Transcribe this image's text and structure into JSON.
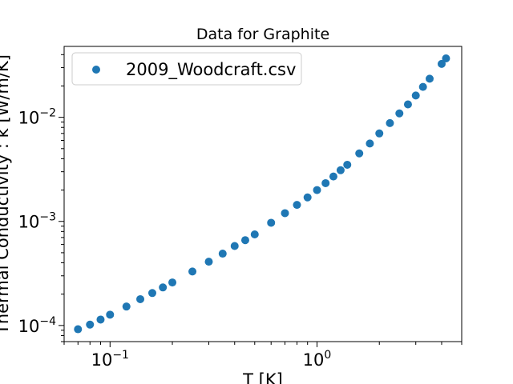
{
  "chart_data": {
    "type": "scatter",
    "title": "Data for Graphite",
    "xlabel": "T [K]",
    "ylabel": "Thermal Conductivity : k [W/m/K]",
    "xscale": "log",
    "yscale": "log",
    "xlim": [
      0.06,
      5.0
    ],
    "ylim": [
      7e-05,
      0.048
    ],
    "x_ticks": [
      {
        "value": 0.1,
        "base": "10",
        "exp": "−1"
      },
      {
        "value": 1.0,
        "base": "10",
        "exp": "0"
      }
    ],
    "y_ticks": [
      {
        "value": 0.0001,
        "base": "10",
        "exp": "−4"
      },
      {
        "value": 0.001,
        "base": "10",
        "exp": "−3"
      },
      {
        "value": 0.01,
        "base": "10",
        "exp": "−2"
      }
    ],
    "legend_position": "top-left",
    "grid": false,
    "series": [
      {
        "name": "2009_Woodcraft.csv",
        "color": "#1f77b4",
        "marker": "circle",
        "points": [
          {
            "x": 0.07,
            "y": 9.2e-05
          },
          {
            "x": 0.08,
            "y": 0.000102
          },
          {
            "x": 0.09,
            "y": 0.000114
          },
          {
            "x": 0.1,
            "y": 0.000127
          },
          {
            "x": 0.12,
            "y": 0.000152
          },
          {
            "x": 0.14,
            "y": 0.000179
          },
          {
            "x": 0.16,
            "y": 0.000205
          },
          {
            "x": 0.18,
            "y": 0.000232
          },
          {
            "x": 0.2,
            "y": 0.000259
          },
          {
            "x": 0.25,
            "y": 0.00033
          },
          {
            "x": 0.3,
            "y": 0.00041
          },
          {
            "x": 0.35,
            "y": 0.00049
          },
          {
            "x": 0.4,
            "y": 0.00058
          },
          {
            "x": 0.45,
            "y": 0.00066
          },
          {
            "x": 0.5,
            "y": 0.00075
          },
          {
            "x": 0.6,
            "y": 0.00097
          },
          {
            "x": 0.7,
            "y": 0.0012
          },
          {
            "x": 0.8,
            "y": 0.00144
          },
          {
            "x": 0.9,
            "y": 0.0017
          },
          {
            "x": 1.0,
            "y": 0.002
          },
          {
            "x": 1.1,
            "y": 0.00233
          },
          {
            "x": 1.2,
            "y": 0.0027
          },
          {
            "x": 1.3,
            "y": 0.0031
          },
          {
            "x": 1.4,
            "y": 0.0035
          },
          {
            "x": 1.6,
            "y": 0.0045
          },
          {
            "x": 1.8,
            "y": 0.0056
          },
          {
            "x": 2.0,
            "y": 0.007
          },
          {
            "x": 2.25,
            "y": 0.0088
          },
          {
            "x": 2.5,
            "y": 0.0109
          },
          {
            "x": 2.75,
            "y": 0.0133
          },
          {
            "x": 3.0,
            "y": 0.0162
          },
          {
            "x": 3.25,
            "y": 0.0196
          },
          {
            "x": 3.5,
            "y": 0.0235
          },
          {
            "x": 4.0,
            "y": 0.0326
          },
          {
            "x": 4.2,
            "y": 0.0368
          }
        ]
      }
    ]
  }
}
